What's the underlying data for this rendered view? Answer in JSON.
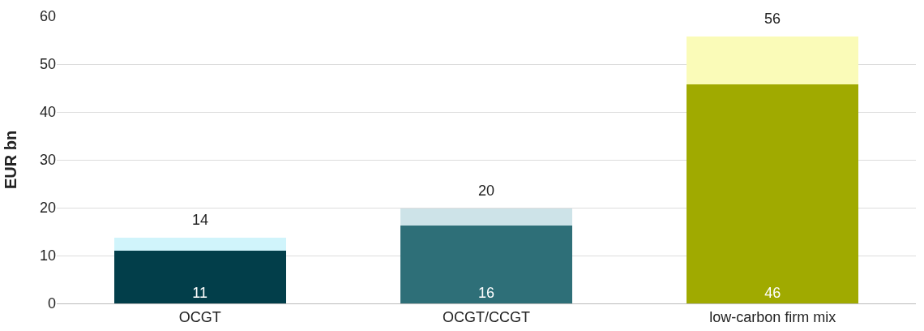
{
  "chart_data": {
    "type": "bar",
    "stacked": true,
    "ylabel": "EUR bn",
    "categories": [
      "OCGT",
      "OCGT/CCGT",
      "low-carbon firm mix"
    ],
    "series": [
      {
        "colors": [
          "#023e4a",
          "#2e6f78",
          "#a0aa00"
        ],
        "values": [
          11,
          16.3,
          45.7
        ],
        "value_labels": [
          "11",
          "16",
          "46"
        ]
      },
      {
        "colors": [
          "#d0f4fb",
          "#cde3e8",
          "#fafbb8"
        ],
        "values": [
          2.7,
          3.5,
          10.1
        ]
      }
    ],
    "totals": [
      "14",
      "20",
      "56"
    ],
    "ylim": [
      0,
      60
    ],
    "yticks": [
      0,
      10,
      20,
      30,
      40,
      50,
      60
    ],
    "grid": "y"
  }
}
